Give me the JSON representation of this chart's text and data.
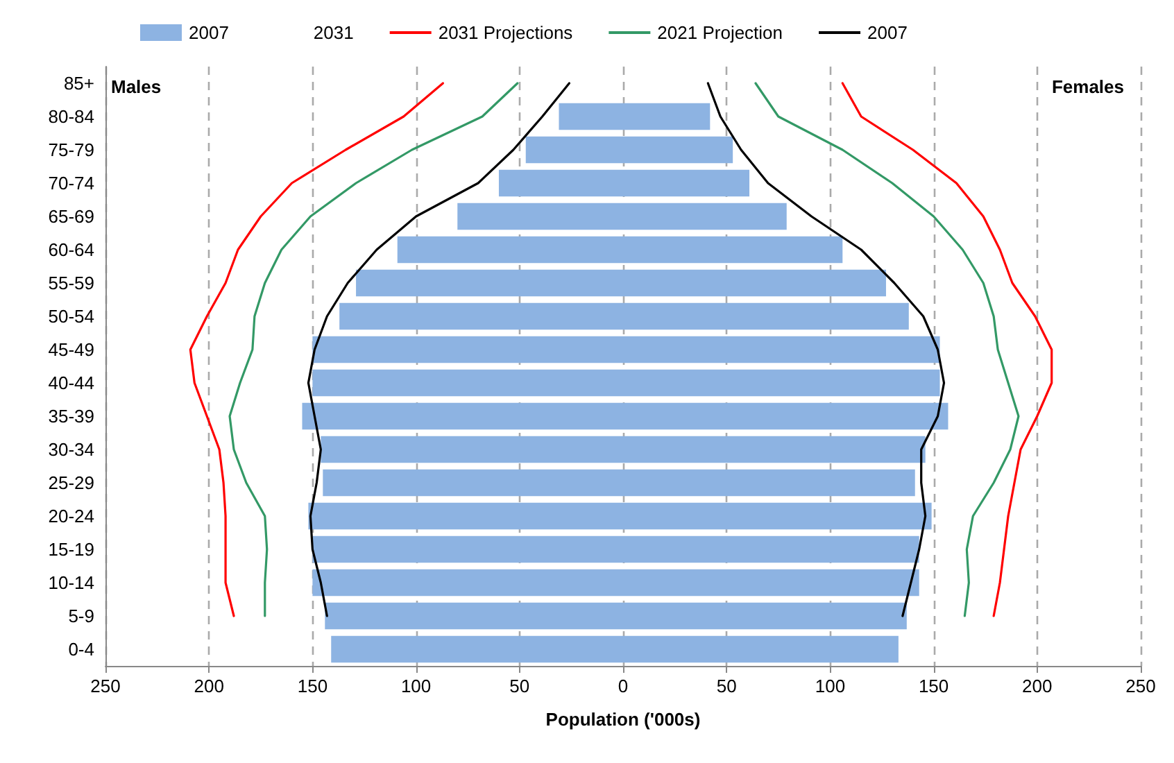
{
  "chart_data": {
    "type": "bar",
    "orientation": "horizontal",
    "stacked": true,
    "xlabel": "Population ('000s)",
    "annotations": [
      "Males",
      "Females"
    ],
    "categories": [
      "85+",
      "80-84",
      "75-79",
      "70-74",
      "65-69",
      "60-64",
      "55-59",
      "50-54",
      "45-49",
      "40-44",
      "35-39",
      "30-34",
      "25-29",
      "20-24",
      "15-19",
      "10-14",
      "5-9",
      "0-4"
    ],
    "series": [
      {
        "name": "2007",
        "color": "#8db3e2",
        "values": [
          null,
          -31,
          -47,
          -60,
          -80,
          -109,
          -129,
          -137,
          -150,
          -150,
          -155,
          -146,
          -145,
          -152,
          -150,
          -150,
          -144,
          -141
        ]
      },
      {
        "color": "#8db3e2",
        "values": [
          null,
          42,
          53,
          61,
          79,
          106,
          127,
          138,
          153,
          153,
          157,
          146,
          141,
          149,
          143,
          143,
          137,
          133
        ]
      },
      {
        "name": "2031",
        "values": [
          null,
          null,
          null,
          null,
          null,
          null,
          null,
          null,
          null,
          null,
          null,
          null,
          null,
          null,
          null,
          null,
          null,
          null
        ]
      },
      {
        "name": "2031 Projections",
        "type": "line",
        "color": "#ff0000",
        "values": [
          -87,
          -106,
          -134,
          -160,
          -175,
          -186,
          -192,
          -201,
          -209,
          -207,
          -201,
          -195,
          -193,
          -192,
          -192,
          -192,
          -188,
          null
        ]
      },
      {
        "type": "line",
        "color": "#ff0000",
        "values": [
          106,
          115,
          140,
          161,
          174,
          182,
          188,
          199,
          207,
          207,
          200,
          192,
          189,
          186,
          184,
          182,
          179,
          null
        ]
      },
      {
        "name": "2021 Projection",
        "type": "line",
        "color": "#339966",
        "values": [
          -51,
          -68,
          -102,
          -129,
          -151,
          -165,
          -173,
          -178,
          -179,
          -185,
          -190,
          -188,
          -182,
          -173,
          -172,
          -173,
          -173,
          null
        ]
      },
      {
        "type": "line",
        "color": "#339966",
        "values": [
          64,
          75,
          106,
          130,
          150,
          164,
          174,
          179,
          181,
          186,
          191,
          187,
          179,
          169,
          166,
          167,
          165,
          null
        ]
      },
      {
        "name": "2007",
        "type": "line",
        "color": "#000000",
        "values": [
          -26,
          -39,
          -53,
          -70,
          -100,
          -119,
          -133,
          -143,
          -149,
          -152,
          -149,
          -146,
          -148,
          -151,
          -150,
          -146,
          -143,
          null
        ]
      },
      {
        "type": "line",
        "color": "#000000",
        "values": [
          41,
          47,
          57,
          70,
          91,
          115,
          131,
          145,
          152,
          155,
          152,
          144,
          144,
          146,
          143,
          139,
          135,
          null
        ]
      }
    ],
    "xlim": [
      -250,
      250
    ],
    "xticks": [
      {
        "value": -250,
        "label": "250"
      },
      {
        "value": -200,
        "label": "200"
      },
      {
        "value": -150,
        "label": "150"
      },
      {
        "value": -100,
        "label": "100"
      },
      {
        "value": -50,
        "label": "50"
      },
      0,
      50,
      100,
      150,
      200,
      250
    ],
    "grid": "x",
    "legend": "top",
    "marker": "none"
  }
}
